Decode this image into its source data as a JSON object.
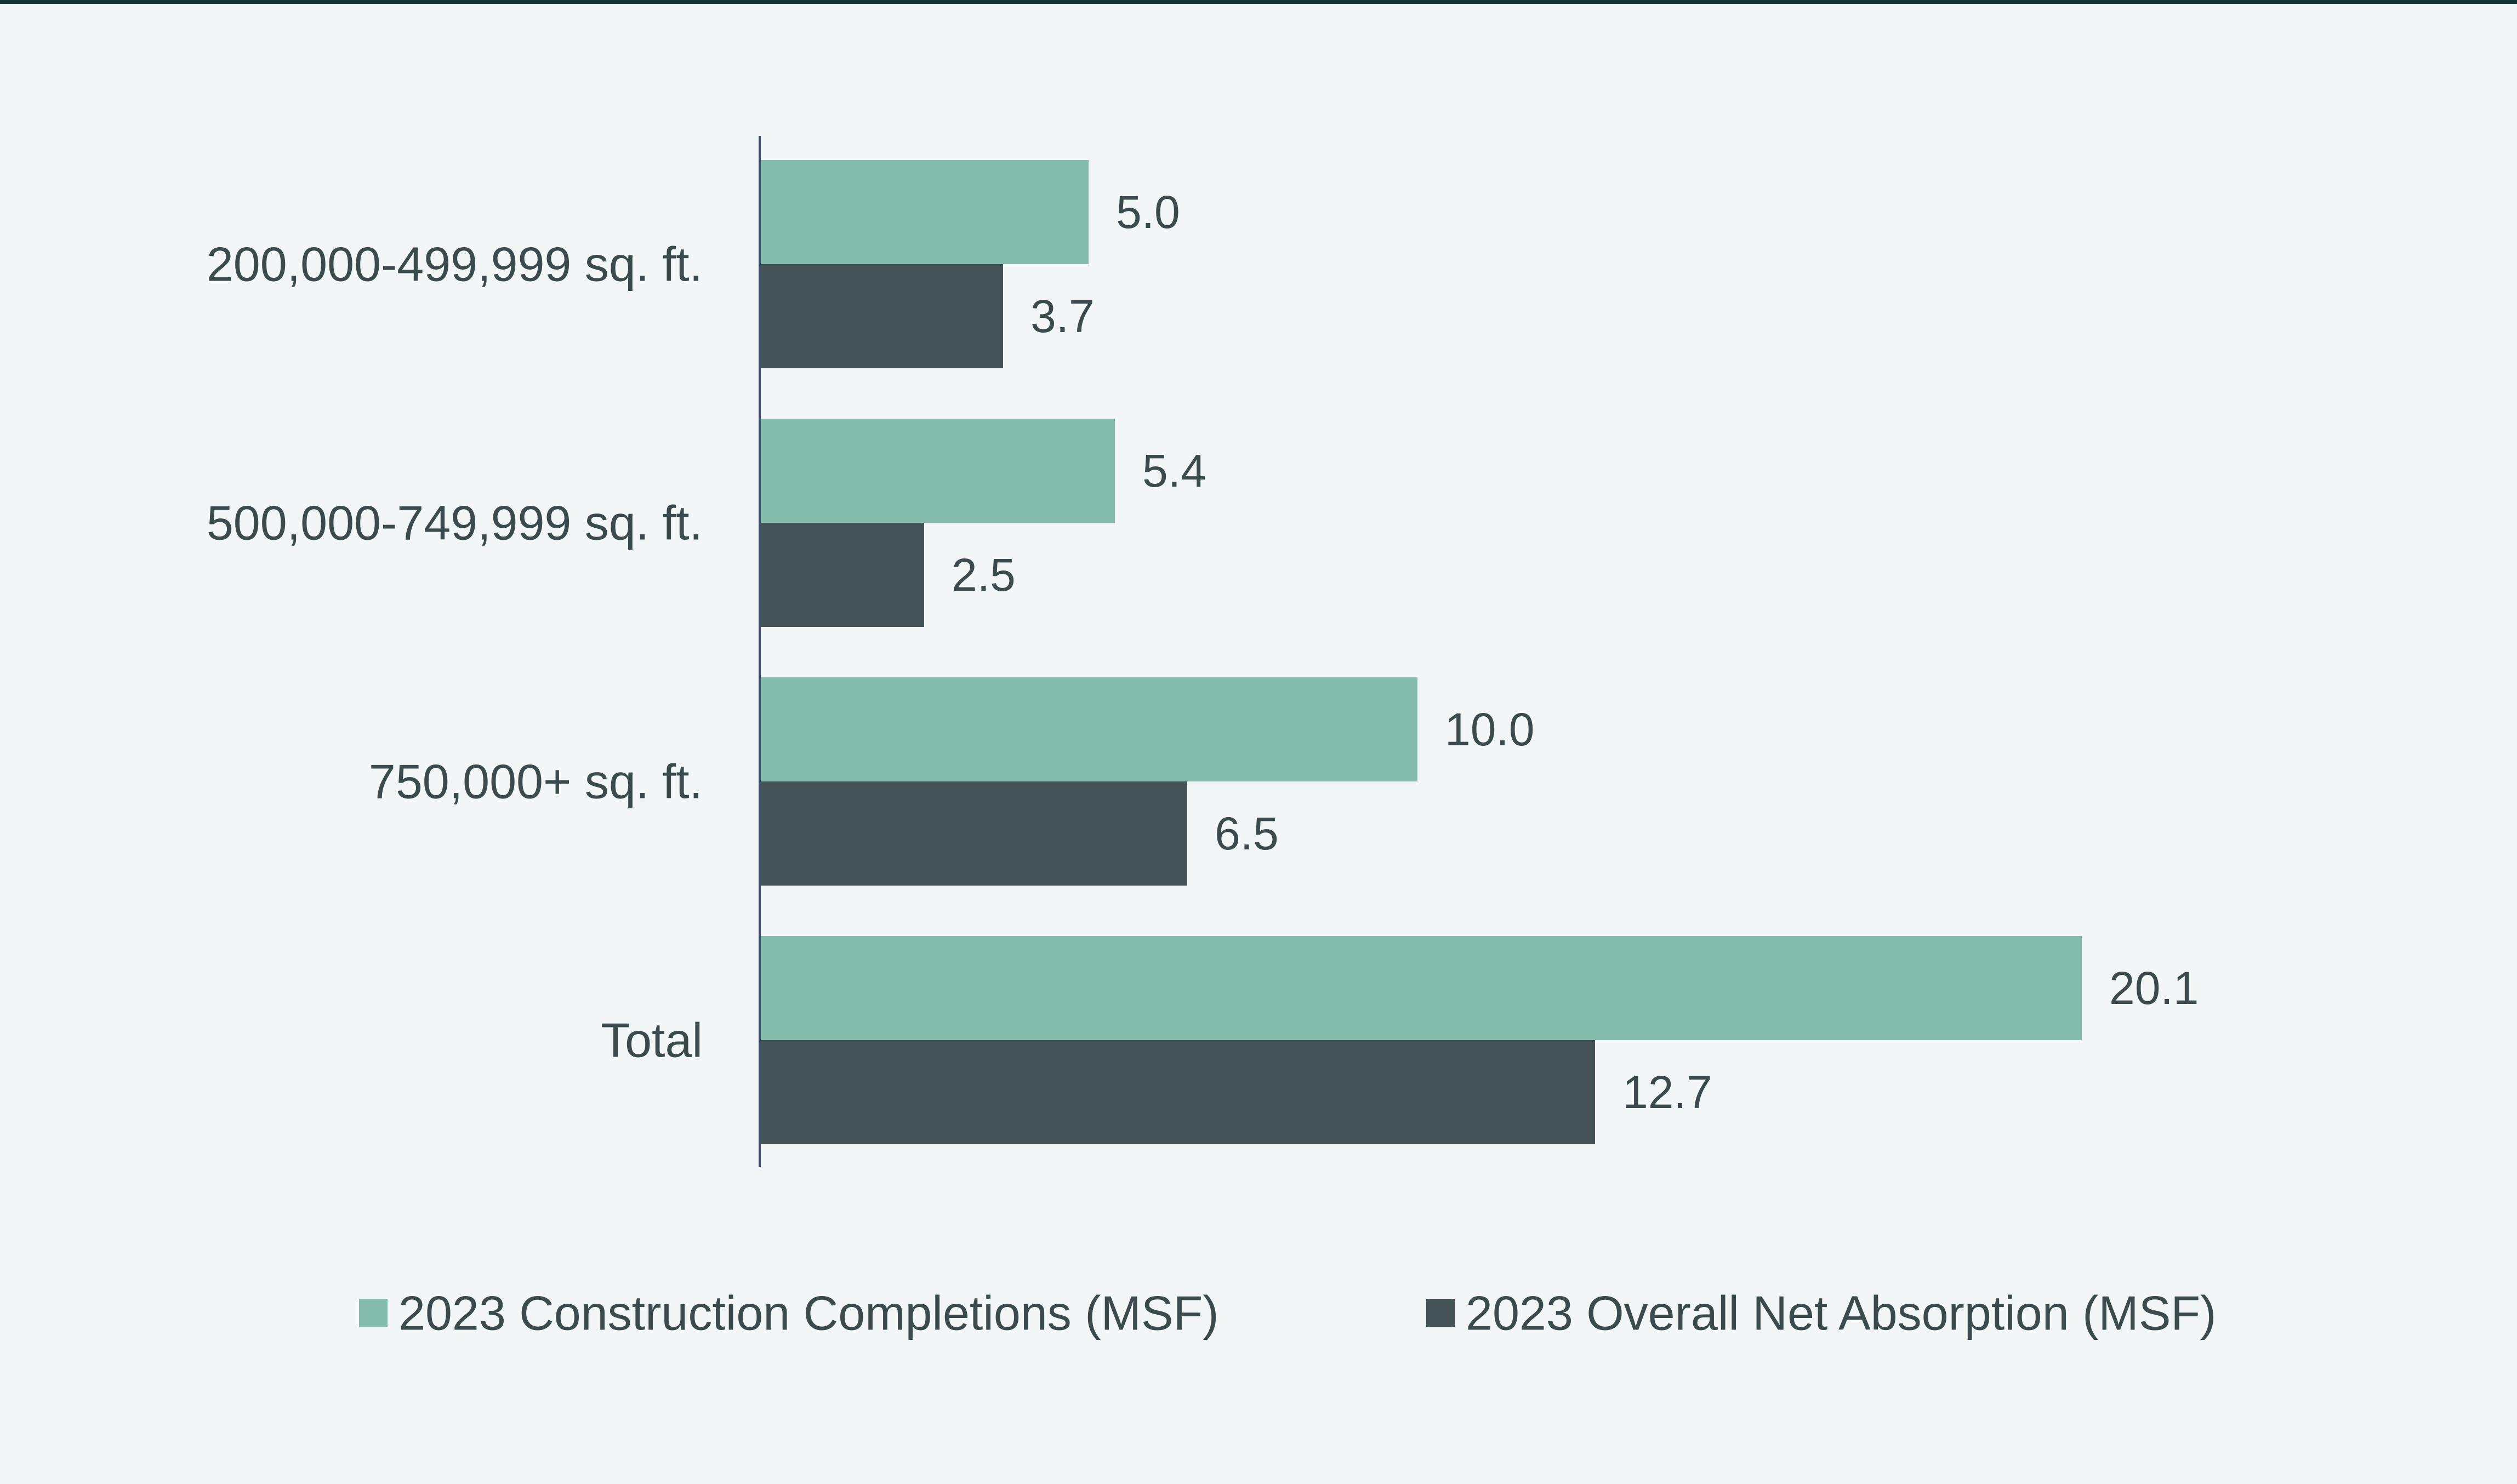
{
  "chart_data": {
    "type": "bar",
    "orientation": "horizontal",
    "title": "",
    "xlabel": "",
    "ylabel": "",
    "categories": [
      "200,000-499,999 sq. ft.",
      "500,000-749,999 sq. ft.",
      "750,000+ sq. ft.",
      "Total"
    ],
    "series": [
      {
        "name": "2023 Construction Completions (MSF)",
        "color": "#84bcae",
        "values": [
          5.0,
          5.4,
          10.0,
          20.1
        ],
        "labels": [
          "5.0",
          "5.4",
          "10.0",
          "20.1"
        ]
      },
      {
        "name": "2023 Overall Net Absorption (MSF)",
        "color": "#435356",
        "values": [
          3.7,
          2.5,
          6.5,
          12.7
        ],
        "labels": [
          "3.7",
          "2.5",
          "6.5",
          "12.7"
        ]
      }
    ],
    "xlim": [
      0,
      25
    ],
    "grid": false,
    "legend_position": "bottom"
  },
  "colors": {
    "background": "#f2f6f6",
    "top_rule": "#153436",
    "axis": "#3f4f6e",
    "text": "#3b4a4c"
  }
}
